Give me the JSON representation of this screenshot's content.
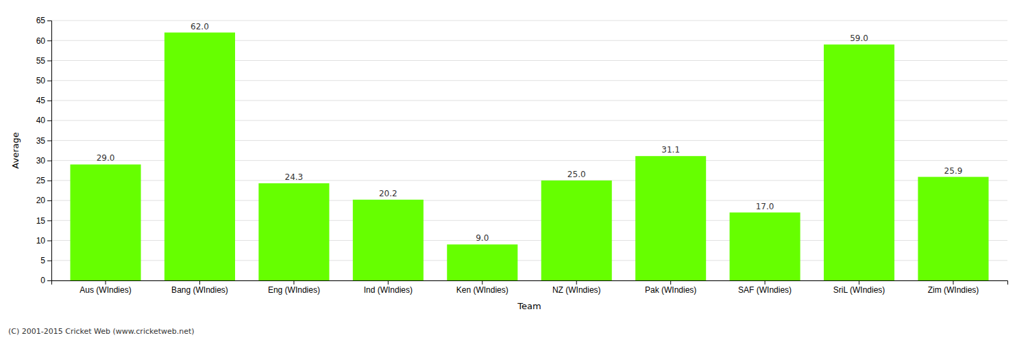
{
  "chart_data": {
    "type": "bar",
    "xlabel": "Team",
    "ylabel": "Average",
    "footnote": "(C) 2001-2015 Cricket Web (www.cricketweb.net)",
    "categories": [
      "Aus (WIndies)",
      "Bang (WIndies)",
      "Eng (WIndies)",
      "Ind (WIndies)",
      "Ken (WIndies)",
      "NZ (WIndies)",
      "Pak (WIndies)",
      "SAF (WIndies)",
      "SriL (WIndies)",
      "Zim (WIndies)"
    ],
    "values": [
      29.0,
      62.0,
      24.3,
      20.2,
      9.0,
      25.0,
      31.1,
      17.0,
      59.0,
      25.9
    ],
    "value_labels": [
      "29.0",
      "62.0",
      "24.3",
      "20.2",
      "9.0",
      "25.0",
      "31.1",
      "17.0",
      "59.0",
      "25.9"
    ],
    "data_labels": true,
    "color": "#66ff00",
    "ylim": [
      0,
      65
    ],
    "yticks": [
      0,
      5,
      10,
      15,
      20,
      25,
      30,
      35,
      40,
      45,
      50,
      55,
      60,
      65
    ],
    "grid": true
  }
}
